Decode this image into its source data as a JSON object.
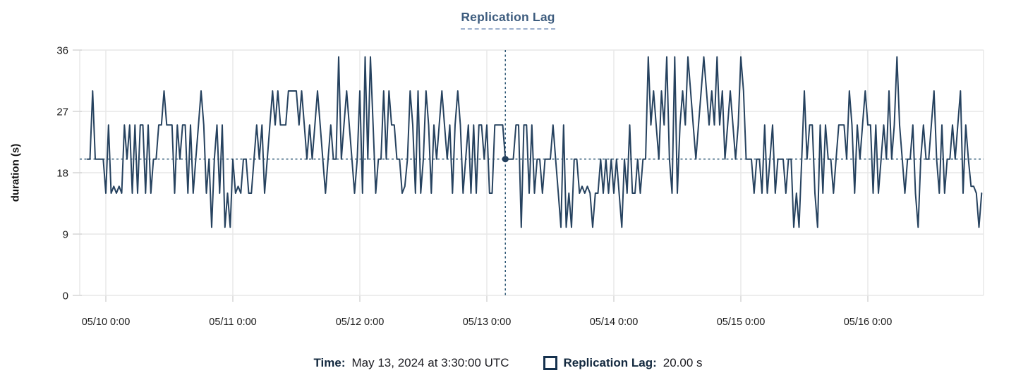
{
  "title": {
    "text": "Replication Lag"
  },
  "y_axis": {
    "title": "duration (s)",
    "ticks": [
      0,
      9,
      18,
      27,
      36
    ]
  },
  "x_axis": {
    "tick_labels": [
      "05/10 0:00",
      "05/11 0:00",
      "05/12 0:00",
      "05/13 0:00",
      "05/14 0:00",
      "05/15 0:00",
      "05/16 0:00"
    ]
  },
  "readout": {
    "time_label": "Time:",
    "time_value": "May 13, 2024 at 3:30:00 UTC",
    "series_label": "Replication Lag:",
    "series_value": "20.00 s",
    "swatch_icon": "series-checkbox-square"
  },
  "colors": {
    "series_line": "#26425f",
    "crosshair": "#2e5775",
    "marker_dot": "#24405d",
    "gridline": "#e7e7e7",
    "tick": "#d8d8d8",
    "axis_text": "#1a1a1a",
    "title_text": "#3d5c7e",
    "title_underline": "#9cb0cd",
    "legend_swatch_border": "#15314e"
  },
  "chart_data": {
    "type": "line",
    "title": "Replication Lag",
    "ylabel": "duration (s)",
    "unit": "s",
    "ylim": [
      0,
      36
    ],
    "y_ticks": [
      0,
      9,
      18,
      27,
      36
    ],
    "x_tick_labels": [
      "05/10 0:00",
      "05/11 0:00",
      "05/12 0:00",
      "05/13 0:00",
      "05/14 0:00",
      "05/15 0:00",
      "05/16 0:00"
    ],
    "grid": true,
    "legend_position": "bottom",
    "start_time": "2024-05-09 20:30 UTC",
    "interval_minutes": 30,
    "start_offset_hours": -3.5,
    "marker": {
      "time": "May 13, 2024 at 3:30:00 UTC",
      "offset_hours": 75.5,
      "value": 20,
      "value_label": "20.00 s"
    },
    "series": [
      {
        "name": "Replication Lag",
        "values": [
          20,
          20,
          30,
          20,
          20,
          20,
          20,
          15,
          25,
          15,
          16,
          15,
          16,
          15,
          25,
          20,
          25,
          15,
          25,
          15,
          25,
          25,
          15,
          25,
          15,
          20,
          20,
          25,
          25,
          30,
          25,
          25,
          25,
          15,
          25,
          20,
          25,
          25,
          15,
          25,
          15,
          20,
          25,
          30,
          25,
          15,
          20,
          10,
          20,
          25,
          15,
          25,
          10,
          15,
          10,
          20,
          15,
          16,
          15,
          20,
          20,
          15,
          15,
          20,
          25,
          20,
          25,
          15,
          20,
          25,
          30,
          25,
          30,
          25,
          25,
          25,
          30,
          30,
          30,
          30,
          25,
          30,
          25,
          20,
          25,
          20,
          25,
          30,
          25,
          20,
          15,
          20,
          25,
          20,
          20,
          35,
          20,
          25,
          30,
          25,
          20,
          15,
          20,
          30,
          15,
          35,
          20,
          35,
          25,
          15,
          20,
          20,
          30,
          20,
          30,
          25,
          25,
          20,
          20,
          15,
          16,
          20,
          30,
          25,
          15,
          30,
          15,
          20,
          30,
          25,
          15,
          25,
          20,
          25,
          30,
          25,
          20,
          25,
          15,
          25,
          30,
          25,
          15,
          20,
          25,
          15,
          25,
          15,
          25,
          25,
          20,
          25,
          15,
          15,
          25,
          25,
          25,
          25,
          20,
          20,
          20,
          20,
          25,
          25,
          10,
          25,
          25,
          15,
          25,
          15,
          20,
          20,
          15,
          20,
          20,
          20,
          25,
          20,
          15,
          10,
          25,
          10,
          15,
          10,
          20,
          20,
          15,
          16,
          15,
          16,
          15,
          10,
          15,
          15,
          20,
          15,
          20,
          15,
          20,
          15,
          20,
          15,
          10,
          20,
          15,
          25,
          15,
          15,
          20,
          15,
          20,
          20,
          35,
          25,
          30,
          25,
          20,
          30,
          25,
          35,
          20,
          15,
          35,
          15,
          25,
          30,
          25,
          35,
          30,
          25,
          20,
          25,
          30,
          35,
          30,
          25,
          30,
          25,
          35,
          25,
          30,
          20,
          25,
          30,
          25,
          20,
          25,
          35,
          30,
          20,
          20,
          20,
          15,
          20,
          20,
          15,
          25,
          15,
          20,
          25,
          15,
          20,
          20,
          20,
          15,
          20,
          20,
          10,
          15,
          10,
          20,
          30,
          20,
          25,
          25,
          15,
          10,
          25,
          15,
          25,
          20,
          20,
          15,
          20,
          25,
          25,
          25,
          20,
          30,
          25,
          15,
          25,
          20,
          25,
          30,
          25,
          25,
          15,
          25,
          15,
          20,
          25,
          20,
          30,
          20,
          25,
          35,
          25,
          20,
          15,
          20,
          20,
          25,
          15,
          10,
          20,
          25,
          20,
          20,
          25,
          30,
          20,
          15,
          25,
          15,
          20,
          20,
          25,
          20,
          25,
          30,
          15,
          25,
          20,
          16,
          16,
          15,
          10,
          15
        ]
      }
    ]
  }
}
